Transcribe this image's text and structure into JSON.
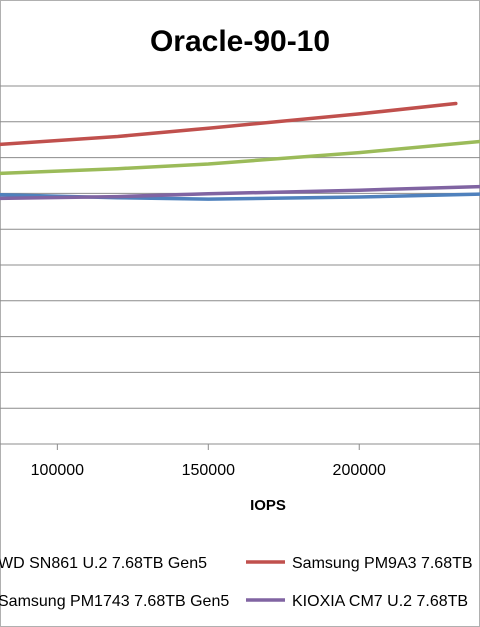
{
  "chart_data": {
    "type": "line",
    "title": "Oracle-90-10",
    "xlabel": "IOPS",
    "ylabel": "",
    "xlim": [
      81000,
      240000
    ],
    "ylim": [
      0,
      10
    ],
    "x_ticks": [
      {
        "value": 100000,
        "label": "100000"
      },
      {
        "value": 150000,
        "label": "150000"
      },
      {
        "value": 200000,
        "label": "200000"
      }
    ],
    "grid": true,
    "legend_position": "bottom",
    "series": [
      {
        "name": "WD SN861 U.2 7.68TB Gen5",
        "color": "#4f81bd",
        "points": [
          [
            81000,
            6.96
          ],
          [
            120000,
            6.88
          ],
          [
            150000,
            6.84
          ],
          [
            200000,
            6.9
          ],
          [
            240000,
            6.98
          ]
        ]
      },
      {
        "name": "Samsung PM9A3 7.68TB",
        "color": "#c0504d",
        "points": [
          [
            81000,
            8.37
          ],
          [
            120000,
            8.59
          ],
          [
            150000,
            8.82
          ],
          [
            200000,
            9.22
          ],
          [
            232000,
            9.51
          ]
        ]
      },
      {
        "name": "Samsung PM1743 7.68TB Gen5",
        "color": "#9bbb59",
        "points": [
          [
            81000,
            7.56
          ],
          [
            120000,
            7.69
          ],
          [
            150000,
            7.82
          ],
          [
            200000,
            8.14
          ],
          [
            240000,
            8.45
          ]
        ]
      },
      {
        "name": "KIOXIA CM7 U.2 7.68TB",
        "color": "#8064a2",
        "points": [
          [
            81000,
            6.86
          ],
          [
            120000,
            6.91
          ],
          [
            150000,
            6.99
          ],
          [
            200000,
            7.09
          ],
          [
            240000,
            7.19
          ]
        ]
      }
    ]
  }
}
